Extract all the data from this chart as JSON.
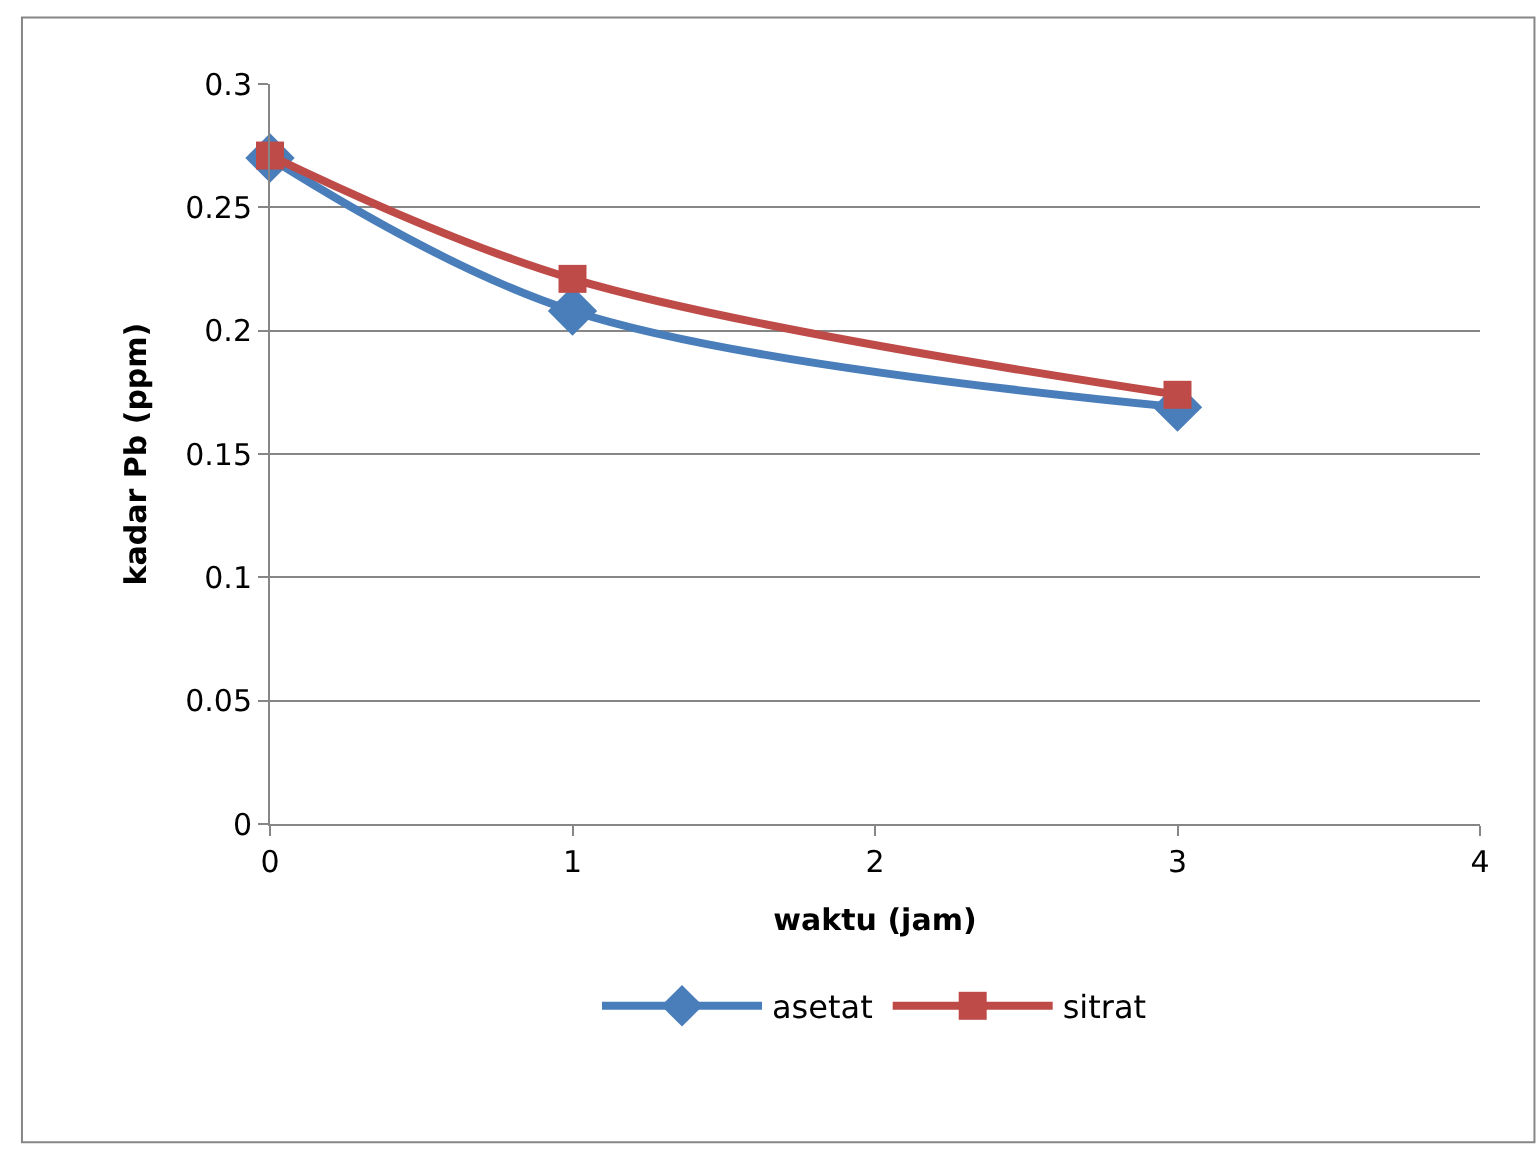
{
  "chart_data": {
    "type": "line",
    "xlabel": "waktu (jam)",
    "ylabel": "kadar Pb (ppm)",
    "x": [
      0,
      1,
      3
    ],
    "series": [
      {
        "name": "asetat",
        "color": "#4a7ebb",
        "values": [
          0.27,
          0.208,
          0.169
        ],
        "marker": "diamond"
      },
      {
        "name": "sitrat",
        "color": "#be4b48",
        "values": [
          0.271,
          0.221,
          0.174
        ],
        "marker": "square"
      }
    ],
    "xlim": [
      0,
      4
    ],
    "xticks": [
      0,
      1,
      2,
      3,
      4
    ],
    "ylim": [
      0,
      0.3
    ],
    "yticks": [
      0,
      0.05,
      0.1,
      0.15,
      0.2,
      0.25,
      0.3
    ],
    "grid": "y",
    "legend": "bottom",
    "line_style": "solid"
  }
}
